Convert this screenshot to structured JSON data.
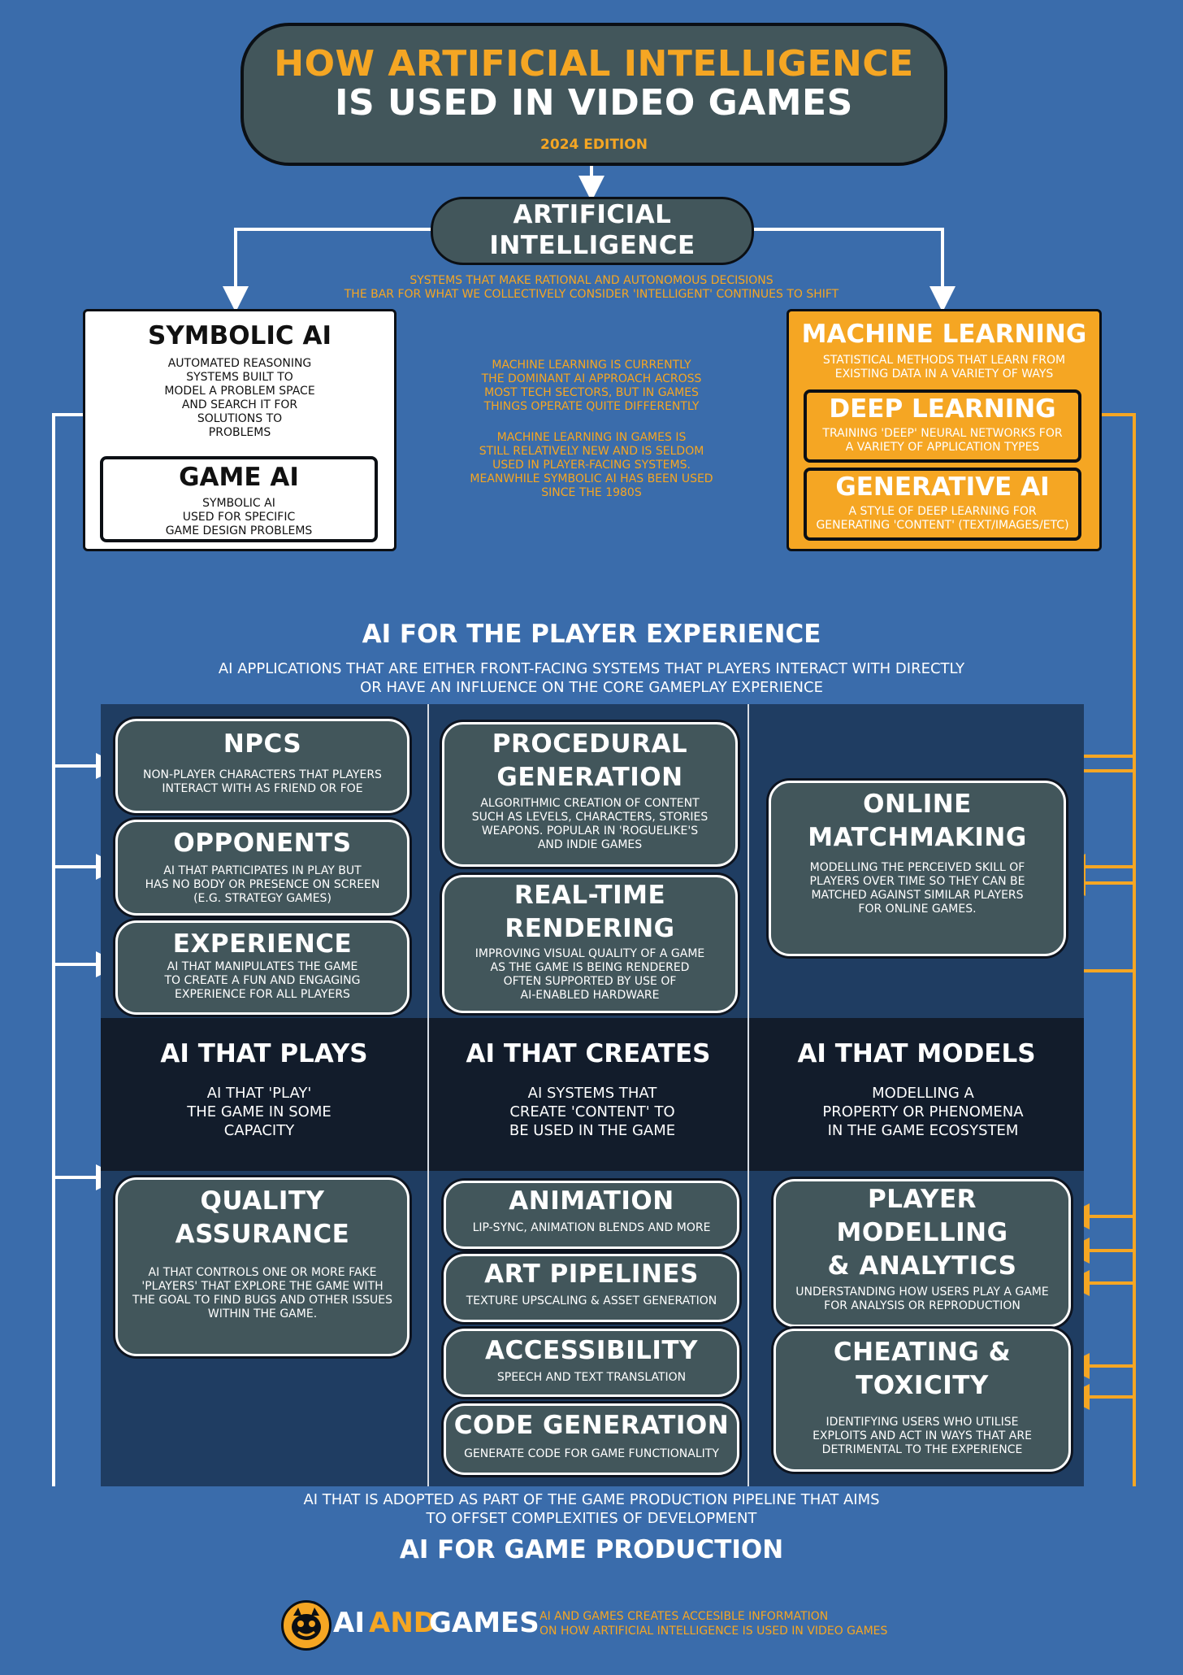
{
  "header": {
    "title_line1": "HOW ARTIFICIAL INTELLIGENCE",
    "title_line2": "IS USED IN VIDEO GAMES",
    "edition": "2024 EDITION"
  },
  "ai_root": {
    "label_line1": "ARTIFICIAL",
    "label_line2": "INTELLIGENCE",
    "desc_line1": "SYSTEMS THAT MAKE RATIONAL AND AUTONOMOUS DECISIONS",
    "desc_line2": "THE BAR FOR WHAT WE COLLECTIVELY CONSIDER 'INTELLIGENT' CONTINUES TO SHIFT"
  },
  "symbolic_ai": {
    "title": "SYMBOLIC AI",
    "desc": "AUTOMATED REASONING\nSYSTEMS BUILT TO\nMODEL A PROBLEM SPACE\nAND SEARCH IT FOR\nSOLUTIONS TO\nPROBLEMS",
    "game_ai_title": "GAME AI",
    "game_ai_desc": "SYMBOLIC AI\nUSED FOR SPECIFIC\nGAME DESIGN PROBLEMS"
  },
  "center_note": {
    "para1": "MACHINE LEARNING IS CURRENTLY\nTHE DOMINANT AI APPROACH ACROSS\nMOST TECH SECTORS, BUT IN GAMES\nTHINGS OPERATE QUITE DIFFERENTLY",
    "para2": "MACHINE LEARNING IN GAMES IS\nSTILL RELATIVELY NEW AND IS SELDOM\nUSED IN PLAYER-FACING SYSTEMS.\nMEANWHILE SYMBOLIC AI HAS BEEN USED\nSINCE THE 1980S"
  },
  "machine_learning": {
    "title": "MACHINE LEARNING",
    "desc": "STATISTICAL METHODS THAT LEARN FROM\nEXISTING DATA IN A VARIETY OF WAYS",
    "deep_title": "DEEP LEARNING",
    "deep_desc": "TRAINING 'DEEP' NEURAL NETWORKS FOR\nA VARIETY OF APPLICATION TYPES",
    "gen_title": "GENERATIVE AI",
    "gen_desc": "A STYLE OF DEEP LEARNING FOR\nGENERATING 'CONTENT' (TEXT/IMAGES/ETC)"
  },
  "player_experience": {
    "title": "AI FOR THE PLAYER EXPERIENCE",
    "desc_line1": "AI APPLICATIONS THAT ARE EITHER FRONT-FACING SYSTEMS THAT PLAYERS INTERACT WITH DIRECTLY",
    "desc_line2": "OR HAVE AN INFLUENCE ON THE CORE GAMEPLAY EXPERIENCE"
  },
  "boxes": {
    "npcs": {
      "title": "NPCS",
      "desc": "NON-PLAYER CHARACTERS THAT PLAYERS\nINTERACT WITH AS FRIEND OR FOE"
    },
    "opponents": {
      "title": "OPPONENTS",
      "desc": "AI THAT PARTICIPATES IN PLAY BUT\nHAS NO BODY OR PRESENCE ON SCREEN\n(E.G. STRATEGY GAMES)"
    },
    "experience": {
      "title": "EXPERIENCE",
      "desc": "AI THAT MANIPULATES THE GAME\nTO CREATE A FUN AND ENGAGING\nEXPERIENCE FOR ALL PLAYERS"
    },
    "procedural": {
      "title_line1": "PROCEDURAL",
      "title_line2": "GENERATION",
      "desc": "ALGORITHMIC CREATION OF CONTENT\nSUCH AS LEVELS, CHARACTERS, STORIES\nWEAPONS.  POPULAR IN 'ROGUELIKE'S\nAND INDIE GAMES"
    },
    "rendering": {
      "title_line1": "REAL-TIME",
      "title_line2": "RENDERING",
      "desc": "IMPROVING VISUAL QUALITY OF A GAME\nAS THE GAME IS BEING RENDERED\nOFTEN SUPPORTED BY USE OF\nAI-ENABLED HARDWARE"
    },
    "matchmaking": {
      "title_line1": "ONLINE",
      "title_line2": "MATCHMAKING",
      "desc": "MODELLING THE PERCEIVED SKILL OF\nPLAYERS OVER TIME SO THEY CAN BE\nMATCHED AGAINST SIMILAR PLAYERS\nFOR ONLINE GAMES."
    },
    "qa": {
      "title_line1": "QUALITY",
      "title_line2": "ASSURANCE",
      "desc": "AI THAT CONTROLS ONE OR MORE FAKE\n'PLAYERS' THAT EXPLORE THE GAME WITH\nTHE GOAL TO FIND BUGS AND OTHER ISSUES\nWITHIN THE GAME."
    },
    "animation": {
      "title": "ANIMATION",
      "desc": "LIP-SYNC, ANIMATION BLENDS AND MORE"
    },
    "art": {
      "title": "ART PIPELINES",
      "desc": "TEXTURE UPSCALING  & ASSET GENERATION"
    },
    "accessibility": {
      "title": "ACCESSIBILITY",
      "desc": "SPEECH AND TEXT TRANSLATION"
    },
    "codegen": {
      "title": "CODE GENERATION",
      "desc": "GENERATE CODE FOR GAME FUNCTIONALITY"
    },
    "modelling": {
      "title_line1": "PLAYER",
      "title_line2": "MODELLING",
      "title_line3": "& ANALYTICS",
      "desc": "UNDERSTANDING HOW USERS PLAY A GAME\nFOR ANALYSIS OR REPRODUCTION"
    },
    "cheating": {
      "title_line1": "CHEATING &",
      "title_line2": "TOXICITY",
      "desc": "IDENTIFYING USERS WHO UTILISE\nEXPLOITS AND ACT IN WAYS THAT ARE\nDETRIMENTAL TO THE EXPERIENCE"
    }
  },
  "columns": {
    "plays": {
      "title": "AI THAT PLAYS",
      "desc": "AI THAT 'PLAY'\nTHE GAME IN SOME\nCAPACITY"
    },
    "creates": {
      "title": "AI THAT CREATES",
      "desc": "AI SYSTEMS THAT\nCREATE 'CONTENT' TO\nBE USED IN THE GAME"
    },
    "models": {
      "title": "AI THAT MODELS",
      "desc": "MODELLING A\nPROPERTY OR PHENOMENA\nIN THE GAME ECOSYSTEM"
    }
  },
  "game_production": {
    "desc_line1": "AI THAT IS ADOPTED AS PART OF THE GAME PRODUCTION PIPELINE THAT AIMS",
    "desc_line2": "TO OFFSET COMPLEXITIES OF DEVELOPMENT",
    "title": "AI FOR GAME PRODUCTION"
  },
  "footer": {
    "logo_text_a": "AI",
    "logo_text_b": "AND",
    "logo_text_c": "GAMES",
    "tagline_line1": "AI AND GAMES CREATES ACCESIBLE INFORMATION",
    "tagline_line2": "ON HOW ARTIFICIAL INTELLIGENCE IS USED IN VIDEO GAMES"
  },
  "colors": {
    "background": "#3a6cab",
    "accent": "#f5a623",
    "box": "#42565b",
    "panel": "#1f3d62",
    "band": "#121c2b"
  }
}
